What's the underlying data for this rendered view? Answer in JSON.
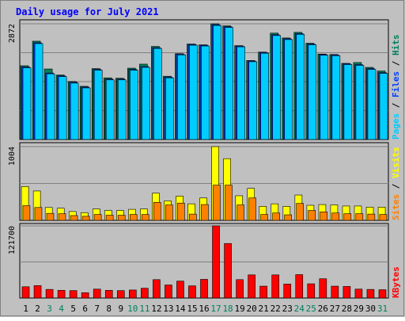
{
  "chart_data": {
    "type": "bar",
    "title": "Daily usage for July 2021",
    "categories": [
      "1",
      "2",
      "3",
      "4",
      "5",
      "6",
      "7",
      "8",
      "9",
      "10",
      "11",
      "12",
      "13",
      "14",
      "15",
      "16",
      "17",
      "18",
      "19",
      "20",
      "21",
      "22",
      "23",
      "24",
      "25",
      "26",
      "27",
      "28",
      "29",
      "30",
      "31"
    ],
    "weekend_categories": [
      "3",
      "4",
      "10",
      "11",
      "17",
      "18",
      "24",
      "25",
      "31"
    ],
    "panels": [
      {
        "id": "hits-files-pages",
        "ylabel": "Pages / Files / Hits",
        "max_label": "2872",
        "ylim": [
          0,
          2872
        ],
        "series": [
          {
            "name": "Hits",
            "color": "#00805c",
            "values": [
              1830,
              2440,
              1750,
              1600,
              1440,
              1320,
              1760,
              1530,
              1520,
              1770,
              1870,
              2310,
              1570,
              2130,
              2370,
              2350,
              2872,
              2820,
              2330,
              1960,
              2170,
              2640,
              2520,
              2660,
              2390,
              2120,
              2110,
              1890,
              1910,
              1790,
              1700
            ]
          },
          {
            "name": "Files",
            "color": "#0040ff",
            "values": [
              1800,
              2400,
              1650,
              1580,
              1420,
              1300,
              1740,
              1500,
              1500,
              1740,
              1810,
              2280,
              1550,
              2120,
              2360,
              2340,
              2850,
              2800,
              2320,
              1950,
              2160,
              2600,
              2500,
              2630,
              2370,
              2110,
              2100,
              1880,
              1860,
              1760,
              1660
            ]
          },
          {
            "name": "Pages",
            "color": "#00ccff",
            "values": [
              1780,
              2380,
              1630,
              1560,
              1400,
              1280,
              1720,
              1480,
              1480,
              1720,
              1790,
              2260,
              1530,
              2100,
              2340,
              2320,
              2830,
              2780,
              2300,
              1930,
              2140,
              2580,
              2480,
              2610,
              2350,
              2090,
              2080,
              1860,
              1840,
              1740,
              1640
            ]
          }
        ]
      },
      {
        "id": "visits-sites",
        "ylabel": "Sites / Visits",
        "max_label": "1004",
        "ylim": [
          0,
          1004
        ],
        "series": [
          {
            "name": "Visits",
            "color": "#ffff00",
            "values": [
              460,
              400,
              175,
              165,
              120,
              105,
              155,
              135,
              135,
              150,
              155,
              370,
              265,
              330,
              225,
              305,
              1004,
              840,
              335,
              435,
              190,
              225,
              190,
              345,
              205,
              215,
              210,
              195,
              195,
              180,
              180
            ]
          },
          {
            "name": "Sites",
            "color": "#ff8000",
            "values": [
              200,
              175,
              95,
              90,
              65,
              55,
              80,
              70,
              70,
              80,
              80,
              245,
              210,
              235,
              85,
              215,
              480,
              480,
              210,
              305,
              80,
              100,
              75,
              230,
              135,
              115,
              100,
              90,
              90,
              85,
              80
            ]
          }
        ]
      },
      {
        "id": "kbytes",
        "ylabel": "KBytes",
        "max_label": "121700",
        "ylim": [
          0,
          121700
        ],
        "series": [
          {
            "name": "KBytes",
            "color": "#ff0000",
            "values": [
              19000,
              21000,
              14500,
              13000,
              12500,
              9000,
              15000,
              13000,
              12500,
              13500,
              16500,
              31000,
              22000,
              28500,
              20500,
              31500,
              121700,
              92000,
              31000,
              39000,
              20000,
              39000,
              23500,
              39500,
              24000,
              32500,
              20000,
              19500,
              15000,
              14500,
              14000
            ]
          }
        ]
      }
    ],
    "colors": {
      "background": "#c0c0c0",
      "border": "#000000",
      "title": "#0000ff",
      "weekday_label": "#000000",
      "weekend_label": "#00805c",
      "grid": "#808080"
    }
  }
}
